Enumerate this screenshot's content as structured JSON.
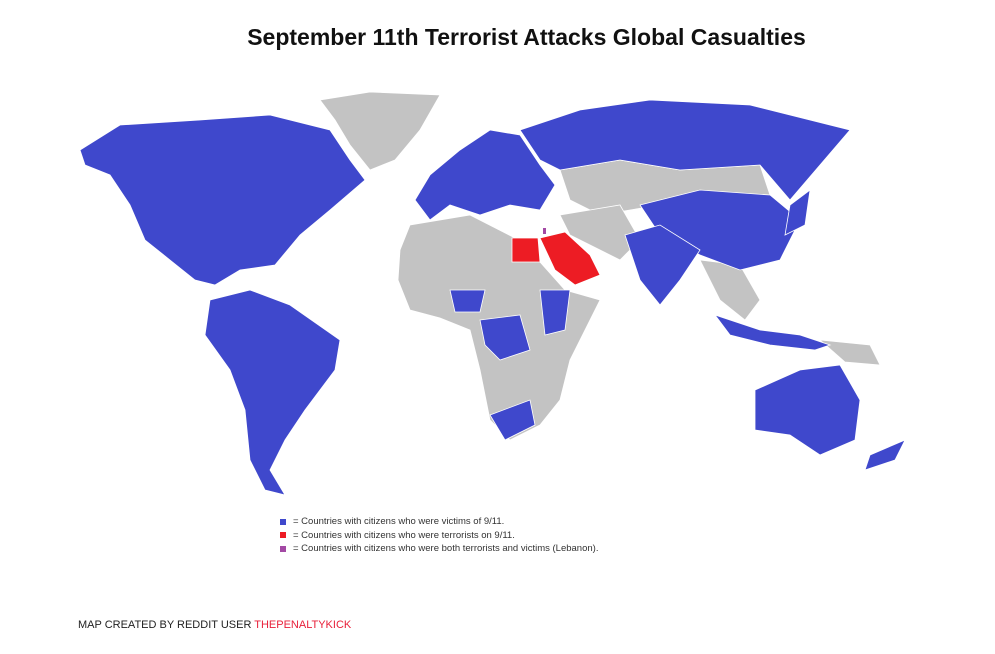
{
  "title": "September 11th Terrorist Attacks Global Casualties",
  "colors": {
    "victims": "#3f48cc",
    "terrorists": "#ed1c24",
    "both": "#a349a4",
    "other": "#c3c3c3"
  },
  "legend": [
    {
      "label": "= Countries with citizens who were victims of 9/11.",
      "color": "#3f48cc"
    },
    {
      "label": "= Countries with citizens who were terrorists on 9/11.",
      "color": "#ed1c24"
    },
    {
      "label": "= Countries with citizens who were both terrorists and victims (Lebanon).",
      "color": "#a349a4"
    }
  ],
  "credit": {
    "prefix": "MAP CREATED BY REDDIT USER ",
    "user": "THEPENALTYKICK"
  }
}
